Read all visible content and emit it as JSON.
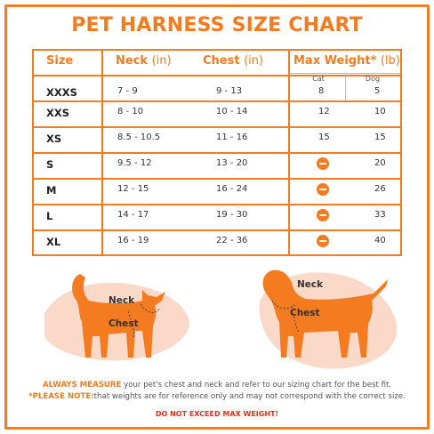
{
  "title": "PET HARNESS SIZE CHART",
  "headers": {
    "size": "Size",
    "neck": "Neck",
    "neck_unit": "(in)",
    "chest": "Chest",
    "chest_unit": "(in)",
    "max_weight": "Max Weight*",
    "max_weight_unit": "(lb)",
    "cat": "Cat",
    "dog": "Dog"
  },
  "rows": [
    {
      "size": "XXXS",
      "neck": "7 - 9",
      "chest": "9 - 13",
      "cat": "8",
      "dog": "5"
    },
    {
      "size": "XXS",
      "neck": "8 - 10",
      "chest": "10 - 14",
      "cat": "12",
      "dog": "10"
    },
    {
      "size": "XS",
      "neck": "8.5 - 10.5",
      "chest": "11 - 16",
      "cat": "15",
      "dog": "15"
    },
    {
      "size": "S",
      "neck": "9.5 - 12",
      "chest": "13 - 20",
      "cat": null,
      "dog": "20"
    },
    {
      "size": "M",
      "neck": "12 - 15",
      "chest": "16 - 24",
      "cat": null,
      "dog": "26"
    },
    {
      "size": "L",
      "neck": "14 - 17",
      "chest": "19 - 30",
      "cat": null,
      "dog": "33"
    },
    {
      "size": "XL",
      "neck": "16 - 19",
      "chest": "22 - 36",
      "cat": null,
      "dog": "40"
    }
  ],
  "illustrations": {
    "cat": {
      "neck_label": "Neck",
      "chest_label": "Chest"
    },
    "dog": {
      "neck_label": "Neck",
      "chest_label": "Chest"
    }
  },
  "footer": {
    "line1_emphasis": "ALWAYS MEASURE",
    "line1_rest": " your pet's chest and neck and refer to our sizing chart for the best fit.",
    "line2_emphasis": "*PLEASE NOTE:",
    "line2_rest": "that weights are for reference only and may not correspond with the correct size.",
    "warning": "DO NOT EXCEED MAX WEIGHT!"
  },
  "colors": {
    "accent": "#f47b20",
    "blob": "#fbd9c9",
    "warning": "#e3301f"
  }
}
